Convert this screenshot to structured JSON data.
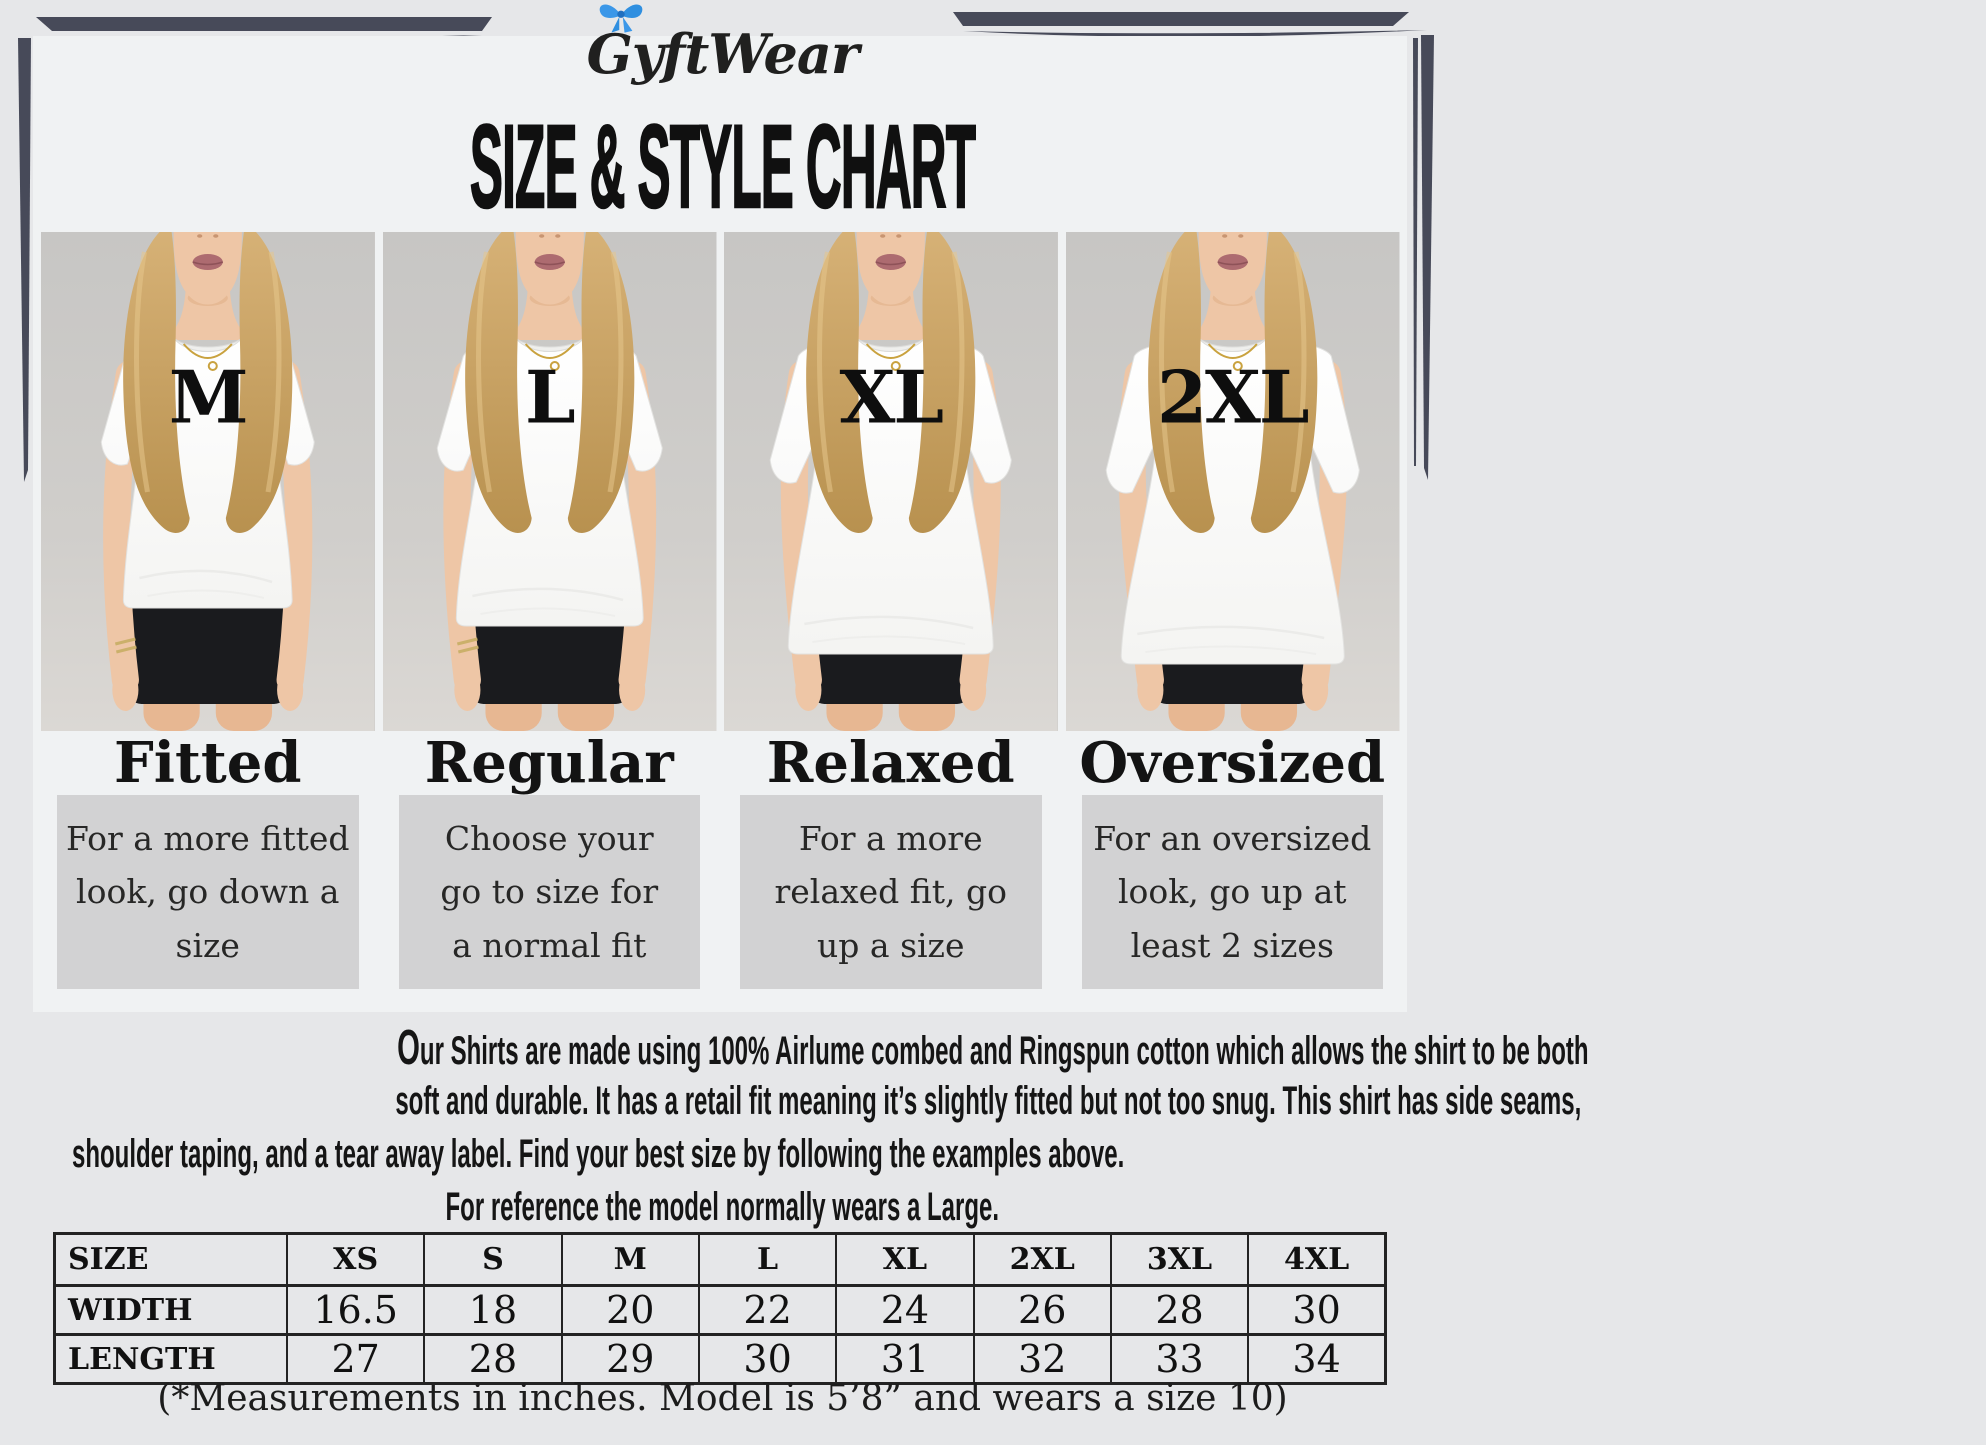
{
  "brand": {
    "name": "GyftWear"
  },
  "title": "SIZE & STYLE CHART",
  "panels": [
    {
      "size_label": "M",
      "fit_title": "Fitted",
      "description": "For a more fitted\nlook, go down a\nsize"
    },
    {
      "size_label": "L",
      "fit_title": "Regular",
      "description": "Choose your\ngo to size for\na normal fit"
    },
    {
      "size_label": "XL",
      "fit_title": "Relaxed",
      "description": "For a more\nrelaxed fit, go\nup a size"
    },
    {
      "size_label": "2XL",
      "fit_title": "Oversized",
      "description": "For an oversized\nlook, go up at\nleast 2 sizes"
    }
  ],
  "about": {
    "line1": "Our Shirts are made using 100% Airlume combed and Ringspun cotton which allows the shirt to be both",
    "line2": "soft and durable. It has a retail fit meaning it’s slightly fitted but not too snug. This shirt has side seams,",
    "line3": "shoulder taping, and a tear away label. Find your best size by following the examples above.",
    "line4": "For reference the model normally wears a Large."
  },
  "size_table": {
    "columns": [
      "SIZE",
      "XS",
      "S",
      "M",
      "L",
      "XL",
      "2XL",
      "3XL",
      "4XL"
    ],
    "rows": [
      {
        "label": "WIDTH",
        "values": [
          "16.5",
          "18",
          "20",
          "22",
          "24",
          "26",
          "28",
          "30"
        ]
      },
      {
        "label": "LENGTH",
        "values": [
          "27",
          "28",
          "29",
          "30",
          "31",
          "32",
          "33",
          "34"
        ]
      }
    ]
  },
  "footnote": "(*Measurements in inches. Model is 5’8” and wears a size 10)",
  "colors": {
    "accent_bow": "#2f8fe0",
    "decor_lines": "#474a59"
  }
}
